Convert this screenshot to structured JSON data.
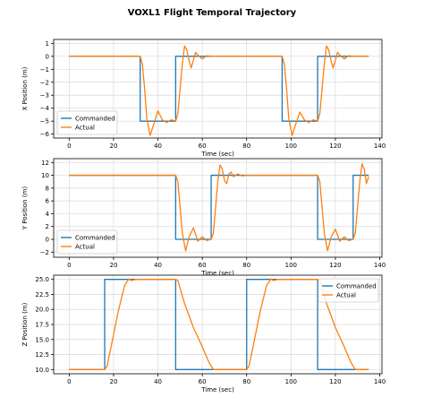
{
  "figure_title": "VOXL1 Flight Temporal Trajectory",
  "colors": {
    "commanded": "#1f77b4",
    "actual": "#ff7f0e",
    "grid": "#d9d9d9"
  },
  "chart_data": [
    {
      "type": "line",
      "xlabel": "Time (sec)",
      "ylabel": "X Position (m)",
      "xlim": [
        -7,
        141
      ],
      "ylim": [
        -6.3,
        1.3
      ],
      "xticks": [
        0,
        20,
        40,
        60,
        80,
        100,
        120,
        140
      ],
      "yticks": [
        -6,
        -5,
        -4,
        -3,
        -2,
        -1,
        0,
        1
      ],
      "legend": {
        "placement": "lower-left",
        "entries": [
          "Commanded",
          "Actual"
        ]
      },
      "grid": true,
      "series": [
        {
          "name": "Commanded",
          "x": [
            0,
            32,
            32,
            48,
            48,
            96,
            96,
            112,
            112,
            135
          ],
          "y": [
            0,
            0,
            -5,
            -5,
            0,
            0,
            -5,
            -5,
            0,
            0
          ]
        },
        {
          "name": "Actual",
          "x": [
            0,
            32,
            33,
            34,
            35,
            36.5,
            38,
            40,
            42,
            44,
            46,
            48,
            49,
            50,
            51,
            52,
            53,
            54,
            55,
            56,
            57,
            58,
            60,
            62,
            64,
            96,
            97,
            98,
            99,
            100.5,
            102,
            104,
            106,
            108,
            110,
            112,
            113,
            114,
            115,
            116,
            117,
            118,
            119,
            120,
            121,
            122,
            124,
            126,
            128,
            135
          ],
          "y": [
            0,
            0,
            -0.6,
            -2.5,
            -4.8,
            -6.1,
            -5.3,
            -4.2,
            -4.9,
            -5.1,
            -4.9,
            -5.0,
            -4.4,
            -2.5,
            -0.6,
            0.8,
            0.5,
            -0.3,
            -0.9,
            -0.3,
            0.3,
            0.1,
            -0.2,
            0.05,
            0,
            0,
            -0.6,
            -2.5,
            -4.8,
            -6.1,
            -5.3,
            -4.3,
            -4.9,
            -5.1,
            -4.9,
            -5.0,
            -4.4,
            -2.5,
            -0.6,
            0.8,
            0.5,
            -0.3,
            -0.9,
            -0.3,
            0.3,
            0.1,
            -0.2,
            0.05,
            0,
            0
          ]
        }
      ]
    },
    {
      "type": "line",
      "xlabel": "Time (sec)",
      "ylabel": "Y Position (m)",
      "xlim": [
        -7,
        141
      ],
      "ylim": [
        -2.8,
        12.6
      ],
      "xticks": [
        0,
        20,
        40,
        60,
        80,
        100,
        120,
        140
      ],
      "yticks": [
        -2,
        0,
        2,
        4,
        6,
        8,
        10,
        12
      ],
      "legend": {
        "placement": "lower-left",
        "entries": [
          "Commanded",
          "Actual"
        ]
      },
      "grid": true,
      "series": [
        {
          "name": "Commanded",
          "x": [
            0,
            48,
            48,
            64,
            64,
            112,
            112,
            128,
            128,
            135
          ],
          "y": [
            10,
            10,
            0,
            0,
            10,
            10,
            0,
            0,
            10,
            10
          ]
        },
        {
          "name": "Actual",
          "x": [
            0,
            48,
            49,
            50,
            51,
            52.5,
            54,
            56,
            58,
            60,
            62,
            64,
            65,
            66,
            67,
            68,
            69,
            70,
            71,
            72,
            73,
            74,
            76,
            78,
            80,
            112,
            113,
            114,
            115,
            116.5,
            118,
            120,
            122,
            124,
            126,
            128,
            129,
            130,
            131,
            132,
            133,
            134,
            135
          ],
          "y": [
            10,
            10,
            9,
            5,
            1,
            -1.8,
            0.3,
            1.8,
            -0.3,
            0.4,
            -0.2,
            0,
            1,
            5,
            9,
            11.6,
            11,
            9.2,
            8.7,
            10.2,
            10.5,
            9.8,
            10.2,
            9.9,
            10,
            10,
            9,
            5,
            1,
            -1.8,
            0.3,
            1.6,
            -0.3,
            0.4,
            -0.2,
            0,
            1,
            5,
            9,
            11.8,
            11,
            8.7,
            9.8
          ]
        }
      ]
    },
    {
      "type": "line",
      "xlabel": "Time (sec)",
      "ylabel": "Z Position (m)",
      "xlim": [
        -7,
        141
      ],
      "ylim": [
        9.3,
        25.7
      ],
      "xticks": [
        0,
        20,
        40,
        60,
        80,
        100,
        120,
        140
      ],
      "yticks": [
        10.0,
        12.5,
        15.0,
        17.5,
        20.0,
        22.5,
        25.0
      ],
      "legend": {
        "placement": "upper-right",
        "entries": [
          "Commanded",
          "Actual"
        ]
      },
      "grid": true,
      "series": [
        {
          "name": "Commanded",
          "x": [
            0,
            16,
            16,
            48,
            48,
            80,
            80,
            112,
            112,
            135
          ],
          "y": [
            10,
            10,
            25,
            25,
            10,
            10,
            25,
            25,
            10,
            10
          ]
        },
        {
          "name": "Actual",
          "x": [
            0,
            16,
            17,
            19,
            22,
            25,
            27,
            28,
            30,
            48,
            49,
            52,
            56,
            60,
            63,
            65,
            67,
            80,
            81,
            83,
            86,
            89,
            91,
            92,
            94,
            112,
            113,
            116,
            120,
            124,
            127,
            129,
            131,
            135
          ],
          "y": [
            10,
            10,
            10.5,
            14,
            19.5,
            24,
            25.1,
            24.8,
            25,
            25,
            24.8,
            21,
            17,
            13.8,
            11.2,
            10,
            10,
            10,
            10.5,
            14,
            19.5,
            24,
            25.1,
            24.8,
            25,
            25,
            24.8,
            21,
            17,
            13.8,
            11.2,
            10,
            10,
            10
          ]
        }
      ]
    }
  ]
}
